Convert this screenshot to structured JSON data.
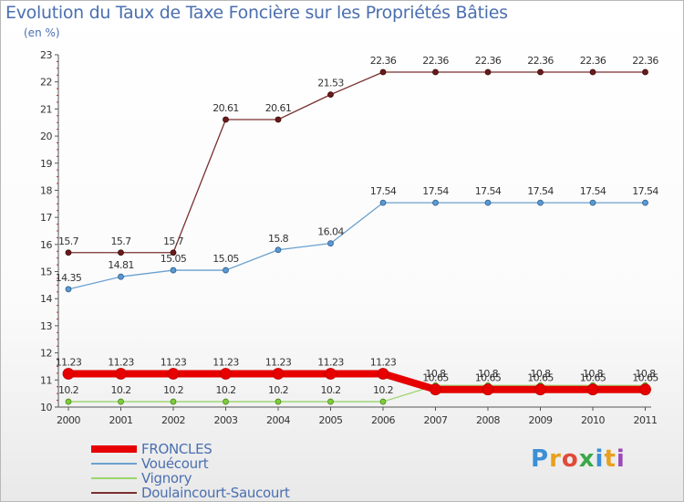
{
  "header": {
    "title": "Evolution du Taux de Taxe Foncière sur les Propriétés Bâties",
    "unit": "(en %)"
  },
  "logo": {
    "text": "Proxiti",
    "letters": [
      "P",
      "r",
      "o",
      "x",
      "i",
      "t",
      "i"
    ]
  },
  "colors": {
    "FRONCLES": "#e60000",
    "Vouécourt": "#6aa0cf",
    "Vignory": "#9ad56a",
    "Doulaincourt-Saucourt": "#7a3030",
    "axis": "#555555",
    "text": "#333333",
    "accent": "#4a6fb0"
  },
  "chart_data": {
    "type": "line",
    "title": "Evolution du Taux de Taxe Foncière sur les Propriétés Bâties",
    "ylabel": "(en %)",
    "xlabel": "",
    "x": [
      "2000",
      "2001",
      "2002",
      "2003",
      "2004",
      "2005",
      "2006",
      "2007",
      "2008",
      "2009",
      "2010",
      "2011"
    ],
    "ylim": [
      10,
      23
    ],
    "yticks": [
      10,
      11,
      12,
      13,
      14,
      15,
      16,
      17,
      18,
      19,
      20,
      21,
      22,
      23
    ],
    "grid": false,
    "legend_position": "bottom-left",
    "series": [
      {
        "name": "FRONCLES",
        "values": [
          11.23,
          11.23,
          11.23,
          11.23,
          11.23,
          11.23,
          11.23,
          10.65,
          10.65,
          10.65,
          10.65,
          10.65
        ],
        "labels": [
          "11.23",
          "11.23",
          "11.23",
          "11.23",
          "11.23",
          "11.23",
          "11.23",
          "10.65",
          "10.65",
          "10.65",
          "10.65",
          "10.65"
        ]
      },
      {
        "name": "Vouécourt",
        "values": [
          14.35,
          14.81,
          15.05,
          15.05,
          15.8,
          16.04,
          17.54,
          17.54,
          17.54,
          17.54,
          17.54,
          17.54
        ],
        "labels": [
          "14.35",
          "14.81",
          "15.05",
          "15.05",
          "15.8",
          "16.04",
          "17.54",
          "17.54",
          "17.54",
          "17.54",
          "17.54",
          "17.54"
        ]
      },
      {
        "name": "Vignory",
        "values": [
          10.2,
          10.2,
          10.2,
          10.2,
          10.2,
          10.2,
          10.2,
          10.8,
          10.8,
          10.8,
          10.8,
          10.8
        ],
        "labels": [
          "10.2",
          "10.2",
          "10.2",
          "10.2",
          "10.2",
          "10.2",
          "10.2",
          "10.8",
          "10.8",
          "10.8",
          "10.8",
          "10.8"
        ]
      },
      {
        "name": "Doulaincourt-Saucourt",
        "values": [
          15.7,
          15.7,
          15.7,
          20.61,
          20.61,
          21.53,
          22.36,
          22.36,
          22.36,
          22.36,
          22.36,
          22.36
        ],
        "labels": [
          "15.7",
          "15.7",
          "15.7",
          "20.61",
          "20.61",
          "21.53",
          "22.36",
          "22.36",
          "22.36",
          "22.36",
          "22.36",
          "22.36"
        ]
      }
    ]
  }
}
